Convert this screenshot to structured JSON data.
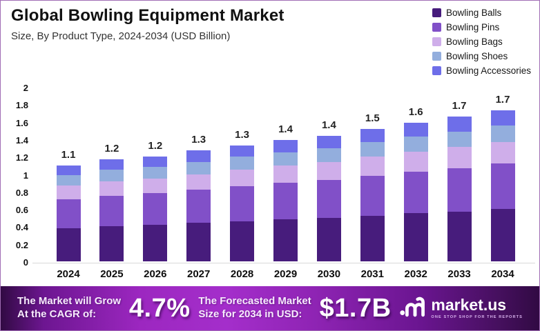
{
  "header": {
    "title": "Global Bowling Equipment Market",
    "subtitle": "Size, By Product Type, 2024-2034 (USD Billion)"
  },
  "chart_data": {
    "type": "bar",
    "stacked": true,
    "title": "Global Bowling Equipment Market",
    "subtitle": "Size, By Product Type, 2024-2034 (USD Billion)",
    "unit": "USD Billion",
    "categories": [
      "2024",
      "2025",
      "2026",
      "2027",
      "2028",
      "2029",
      "2030",
      "2031",
      "2032",
      "2033",
      "2034"
    ],
    "series": [
      {
        "name": "Bowling Balls",
        "color": "#471c7c",
        "values": [
          0.38,
          0.4,
          0.42,
          0.44,
          0.46,
          0.48,
          0.5,
          0.52,
          0.55,
          0.57,
          0.6
        ]
      },
      {
        "name": "Bowling Pins",
        "color": "#8150c8",
        "values": [
          0.33,
          0.35,
          0.36,
          0.38,
          0.4,
          0.42,
          0.43,
          0.46,
          0.48,
          0.5,
          0.52
        ]
      },
      {
        "name": "Bowling Bags",
        "color": "#cfaeea",
        "values": [
          0.16,
          0.17,
          0.17,
          0.18,
          0.19,
          0.2,
          0.21,
          0.22,
          0.23,
          0.24,
          0.25
        ]
      },
      {
        "name": "Bowling Shoes",
        "color": "#93aedd",
        "values": [
          0.12,
          0.13,
          0.13,
          0.14,
          0.15,
          0.15,
          0.16,
          0.17,
          0.17,
          0.18,
          0.19
        ]
      },
      {
        "name": "Bowling Accessories",
        "color": "#6e6ee9",
        "values": [
          0.11,
          0.12,
          0.12,
          0.13,
          0.13,
          0.14,
          0.14,
          0.15,
          0.16,
          0.17,
          0.17
        ]
      }
    ],
    "total_labels": [
      "1.1",
      "1.2",
      "1.2",
      "1.3",
      "1.3",
      "1.4",
      "1.4",
      "1.5",
      "1.6",
      "1.7",
      "1.7"
    ],
    "ylim": [
      0,
      2
    ],
    "ytick_step": 0.2,
    "grid": false,
    "legend_position": "top-right"
  },
  "banner": {
    "cagr_label_line1": "The Market will Grow",
    "cagr_label_line2": "At the CAGR of:",
    "cagr_value": "4.7%",
    "forecast_label_line1": "The Forecasted Market",
    "forecast_label_line2": "Size for 2034 in USD:",
    "forecast_value": "$1.7B",
    "logo": {
      "name": "market.us",
      "tagline": "ONE STOP SHOP FOR THE REPORTS"
    }
  }
}
